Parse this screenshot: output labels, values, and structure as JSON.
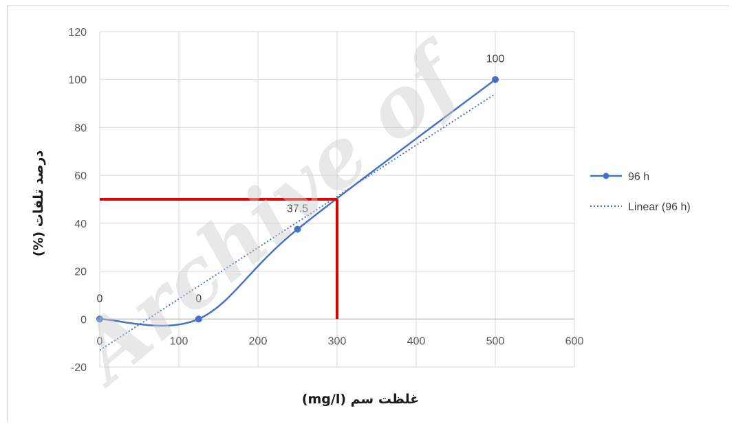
{
  "watermark": "Archive of",
  "chart_data": {
    "type": "line",
    "xlabel": "غلظت سم (mg/l)",
    "ylabel": "درصد تلفات (%)",
    "xlim": [
      0,
      600
    ],
    "ylim": [
      -20,
      120
    ],
    "x_ticks": [
      0,
      100,
      200,
      300,
      400,
      500,
      600
    ],
    "y_ticks": [
      -20,
      0,
      20,
      40,
      60,
      80,
      100,
      120
    ],
    "grid": true,
    "legend_position": "right",
    "series": [
      {
        "name": "96 h",
        "style": "smoothed-line-with-markers",
        "color": "#4472c4",
        "x": [
          0,
          125,
          250,
          500
        ],
        "y": [
          0,
          0,
          37.5,
          100
        ],
        "data_labels": [
          "0",
          "0",
          "37.5",
          "100"
        ]
      },
      {
        "name": "Linear (96 h)",
        "style": "dotted-trendline",
        "color": "#4472c4",
        "x": [
          0,
          500
        ],
        "y": [
          -13,
          94
        ]
      }
    ],
    "annotations": [
      {
        "type": "reference-lines",
        "color": "#e00000",
        "x": 300,
        "y": 50
      }
    ]
  }
}
